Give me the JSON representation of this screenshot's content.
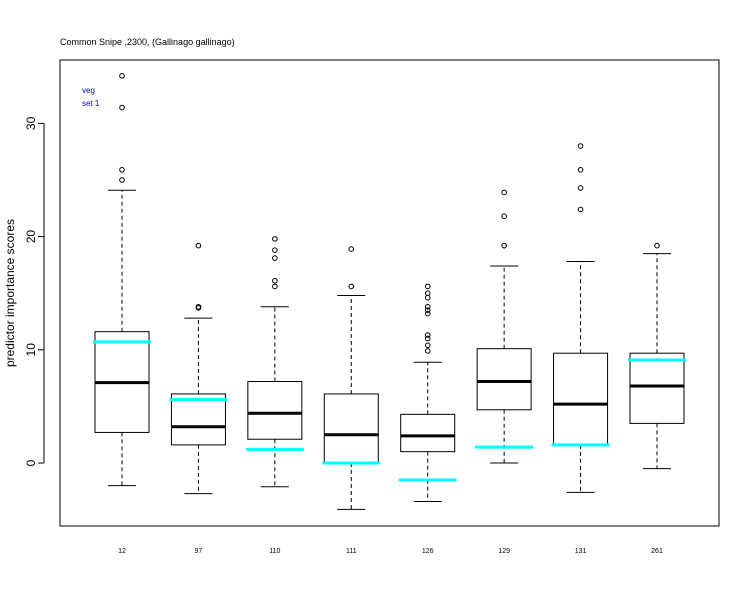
{
  "chart_data": {
    "type": "box",
    "title": "Common Snipe ,2300, (Gallinago gallinago)",
    "xlabel": "",
    "ylabel": "predictor importance scores",
    "ylim": [
      -5.5,
      36.5
    ],
    "yticks": [
      0,
      10,
      20,
      30
    ],
    "grid": false,
    "legend_placement": "top-left",
    "legend_lines": [
      "veg",
      "set 1"
    ],
    "colors": {
      "box": "#000000",
      "marker_line": "#00ffff",
      "legend_text": "#0000cc"
    },
    "categories": [
      "12",
      "97",
      "110",
      "111",
      "126",
      "129",
      "131",
      "261"
    ],
    "boxes": [
      {
        "whisker_low": -2.0,
        "q1": 2.7,
        "median": 7.1,
        "q3": 11.6,
        "whisker_high": 24.1,
        "outliers": [
          25.0,
          25.9,
          31.4,
          34.2
        ],
        "marker": 10.7
      },
      {
        "whisker_low": -2.7,
        "q1": 1.6,
        "median": 3.2,
        "q3": 6.1,
        "whisker_high": 12.8,
        "outliers": [
          13.7,
          13.8,
          19.2
        ],
        "marker": 5.6
      },
      {
        "whisker_low": -2.1,
        "q1": 2.1,
        "median": 4.4,
        "q3": 7.2,
        "whisker_high": 13.8,
        "outliers": [
          15.6,
          16.1,
          18.1,
          18.8,
          19.8
        ],
        "marker": 1.2
      },
      {
        "whisker_low": -4.1,
        "q1": 0.0,
        "median": 2.5,
        "q3": 6.1,
        "whisker_high": 14.8,
        "outliers": [
          15.6,
          18.9
        ],
        "marker": 0.0
      },
      {
        "whisker_low": -3.4,
        "q1": 1.0,
        "median": 2.4,
        "q3": 4.3,
        "whisker_high": 8.9,
        "outliers": [
          9.9,
          10.4,
          11.0,
          11.3,
          13.2,
          13.5,
          13.8,
          14.6,
          15.0,
          15.6
        ],
        "marker": -1.5
      },
      {
        "whisker_low": 0.0,
        "q1": 4.7,
        "median": 7.2,
        "q3": 10.1,
        "whisker_high": 17.4,
        "outliers": [
          19.2,
          21.8,
          23.9
        ],
        "marker": 1.4
      },
      {
        "whisker_low": -2.6,
        "q1": 1.6,
        "median": 5.2,
        "q3": 9.7,
        "whisker_high": 17.8,
        "outliers": [
          22.4,
          24.3,
          25.9,
          28.0
        ],
        "marker": 1.6
      },
      {
        "whisker_low": -0.5,
        "q1": 3.5,
        "median": 6.8,
        "q3": 9.7,
        "whisker_high": 18.5,
        "outliers": [
          19.2
        ],
        "marker": 9.1
      }
    ]
  }
}
